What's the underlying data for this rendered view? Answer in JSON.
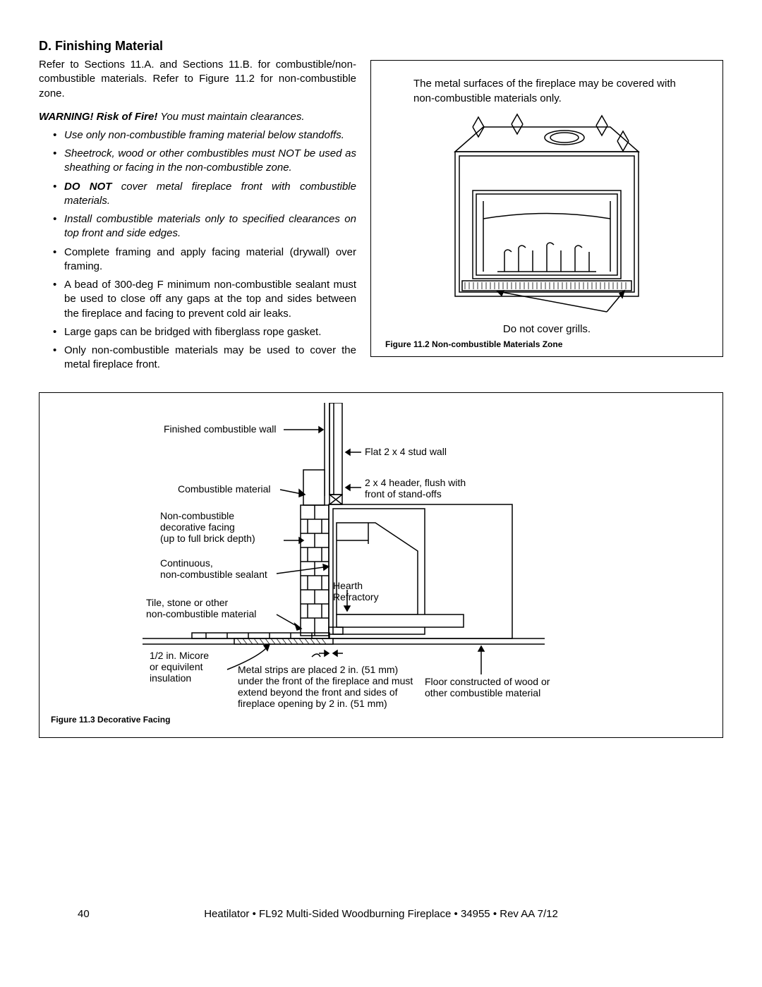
{
  "section": {
    "title": "D. Finishing Material",
    "intro": "Refer to Sections 11.A. and Sections 11.B. for combustible/non-combustible materials. Refer to Figure 11.2 for non-combustible zone.",
    "warning_bold": "WARNING! Risk of Fire!",
    "warning_rest": " You must maintain clearances.",
    "bullets": [
      {
        "italic": true,
        "text": "Use only non-combustible framing material below standoffs."
      },
      {
        "italic": true,
        "text": "Sheetrock, wood or other combustibles must NOT be used as sheathing or facing in the non-combustible zone."
      },
      {
        "italic": true,
        "prefix_bold": "DO NOT",
        "text": " cover metal fireplace front with combustible materials."
      },
      {
        "italic": true,
        "text": "Install combustible materials only to specified clearances on top front and side edges."
      },
      {
        "italic": false,
        "text": "Complete framing and apply facing material (drywall) over framing."
      },
      {
        "italic": false,
        "text": "A bead of 300-deg F minimum non-combustible sealant must be used to close off any gaps at the top and sides between the fireplace and facing to prevent cold air leaks."
      },
      {
        "italic": false,
        "text": "Large gaps can be bridged with fiberglass rope gasket."
      },
      {
        "italic": false,
        "text": "Only non-combustible materials may be used to cover the metal fireplace front."
      }
    ]
  },
  "figure_11_2": {
    "note": "The metal surfaces of the fireplace may be covered with non-combustible materials only.",
    "callout": "Do not cover grills.",
    "caption": "Figure 11.2  Non-combustible Materials Zone",
    "colors": {
      "stroke": "#000000",
      "fill": "#ffffff"
    }
  },
  "figure_11_3": {
    "labels": {
      "finished_wall": "Finished combustible wall",
      "combustible_material": "Combustible material",
      "noncomb_facing_1": "Non-combustible",
      "noncomb_facing_2": "decorative facing",
      "noncomb_facing_3": "(up to full brick depth)",
      "sealant_1": "Continuous,",
      "sealant_2": "non-combustible sealant",
      "tile_1": "Tile, stone or other",
      "tile_2": "non-combustible material",
      "micore_1": "1/2 in. Micore",
      "micore_2": "or equivilent",
      "micore_3": "insulation",
      "flat_stud": "Flat 2 x 4 stud wall",
      "header_1": "2 x 4 header, flush with",
      "header_2": "front of stand-offs",
      "hearth_1": "Hearth",
      "hearth_2": "Refractory",
      "metal_strips_1": "Metal strips are placed 2 in. (51 mm)",
      "metal_strips_2": "under the front of the fireplace and must",
      "metal_strips_3": "extend beyond the front and sides of",
      "metal_strips_4": "fireplace opening by 2 in. (51 mm)",
      "floor_1": "Floor constructed of wood or",
      "floor_2": "other combustible material"
    },
    "caption": "Figure 11.3  Decorative Facing",
    "colors": {
      "stroke": "#000000",
      "fill": "#ffffff"
    }
  },
  "footer": {
    "page": "40",
    "text": "Heatilator • FL92 Multi-Sided Woodburning Fireplace • 34955 • Rev AA 7/12"
  }
}
